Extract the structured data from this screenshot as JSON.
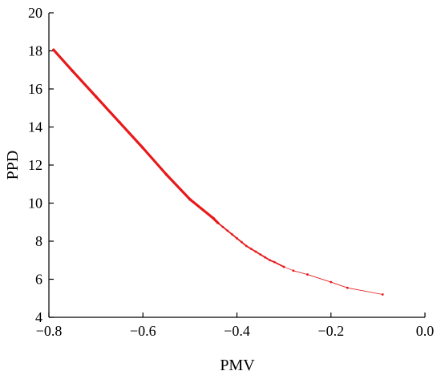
{
  "chart_data": {
    "type": "line",
    "xlabel": "PMV",
    "ylabel": "PPD",
    "xlim": [
      -0.8,
      0.0
    ],
    "ylim": [
      4,
      20
    ],
    "xticks": [
      "−0.8",
      "−0.6",
      "−0.4",
      "−0.2",
      "0.0"
    ],
    "yticks": [
      "4",
      "6",
      "8",
      "10",
      "12",
      "14",
      "16",
      "18",
      "20"
    ],
    "grid": false,
    "legend": "none",
    "series": [
      {
        "color": "#e8191b",
        "x": [
          -0.79,
          -0.75,
          -0.7,
          -0.65,
          -0.6,
          -0.55,
          -0.5,
          -0.45,
          -0.44,
          -0.43,
          -0.42,
          -0.41,
          -0.4,
          -0.39,
          -0.38,
          -0.37,
          -0.36,
          -0.35,
          -0.34,
          -0.33,
          -0.32,
          -0.3,
          -0.28,
          -0.25,
          -0.2,
          -0.165,
          -0.09
        ],
        "y": [
          18.05,
          16.95,
          15.6,
          14.25,
          12.9,
          11.5,
          10.2,
          9.2,
          8.95,
          8.75,
          8.55,
          8.35,
          8.15,
          7.95,
          7.75,
          7.6,
          7.45,
          7.3,
          7.15,
          7.0,
          6.9,
          6.65,
          6.45,
          6.25,
          5.85,
          5.55,
          5.2
        ]
      }
    ]
  }
}
